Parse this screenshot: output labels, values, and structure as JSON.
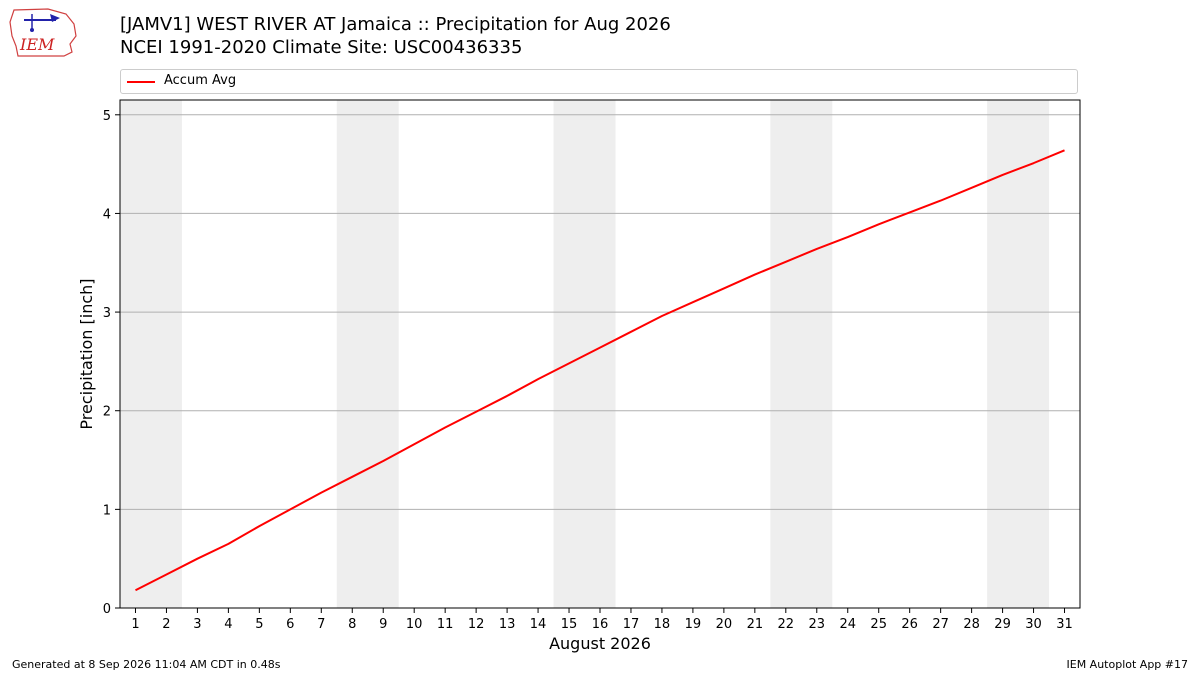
{
  "header": {
    "logo_text": "IEM",
    "title_line1": "[JAMV1] WEST RIVER  AT Jamaica :: Precipitation for Aug 2026",
    "title_line2": "NCEI 1991-2020 Climate Site: USC00436335"
  },
  "legend": {
    "placement": "top",
    "items": [
      {
        "label": "Accum Avg",
        "color": "#ff0000"
      }
    ]
  },
  "footer": {
    "left": "Generated at 8 Sep 2026 11:04 AM CDT in 0.48s",
    "right": "IEM Autoplot App #17"
  },
  "chart_data": {
    "type": "line",
    "title": "[JAMV1] WEST RIVER  AT Jamaica :: Precipitation for Aug 2026",
    "subtitle": "NCEI 1991-2020 Climate Site: USC00436335",
    "xlabel": "August 2026",
    "ylabel": "Precipitation [inch]",
    "x": [
      1,
      2,
      3,
      4,
      5,
      6,
      7,
      8,
      9,
      10,
      11,
      12,
      13,
      14,
      15,
      16,
      17,
      18,
      19,
      20,
      21,
      22,
      23,
      24,
      25,
      26,
      27,
      28,
      29,
      30,
      31
    ],
    "xlim": [
      0.5,
      31.5
    ],
    "ylim": [
      0,
      5.15
    ],
    "yticks": [
      0,
      1,
      2,
      3,
      4,
      5
    ],
    "grid": "y",
    "weekend_bands": [
      [
        0.5,
        2.5
      ],
      [
        7.5,
        9.5
      ],
      [
        14.5,
        16.5
      ],
      [
        21.5,
        23.5
      ],
      [
        28.5,
        30.5
      ]
    ],
    "band_color": "#eeeeee",
    "series": [
      {
        "name": "Accum Avg",
        "color": "#ff0000",
        "values": [
          0.18,
          0.34,
          0.5,
          0.65,
          0.83,
          1.0,
          1.17,
          1.33,
          1.49,
          1.66,
          1.83,
          1.99,
          2.15,
          2.32,
          2.48,
          2.64,
          2.8,
          2.96,
          3.1,
          3.24,
          3.38,
          3.51,
          3.64,
          3.76,
          3.89,
          4.01,
          4.13,
          4.26,
          4.39,
          4.51,
          4.64
        ]
      }
    ]
  }
}
